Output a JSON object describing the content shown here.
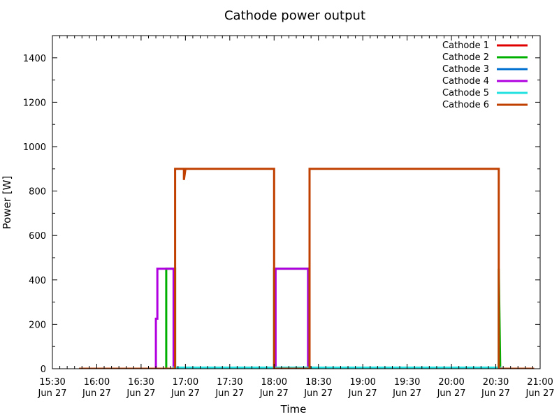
{
  "chart_data": {
    "type": "line",
    "title": "Cathode power output",
    "xlabel": "Time",
    "ylabel": "Power [W]",
    "xlim": [
      930,
      1260
    ],
    "ylim": [
      0,
      1500
    ],
    "grid": false,
    "legend_position": "top-right",
    "x_ticks": [
      {
        "v": 930,
        "t1": "15:30",
        "t2": "Jun 27"
      },
      {
        "v": 960,
        "t1": "16:00",
        "t2": "Jun 27"
      },
      {
        "v": 990,
        "t1": "16:30",
        "t2": "Jun 27"
      },
      {
        "v": 1020,
        "t1": "17:00",
        "t2": "Jun 27"
      },
      {
        "v": 1050,
        "t1": "17:30",
        "t2": "Jun 27"
      },
      {
        "v": 1080,
        "t1": "18:00",
        "t2": "Jun 27"
      },
      {
        "v": 1110,
        "t1": "18:30",
        "t2": "Jun 27"
      },
      {
        "v": 1140,
        "t1": "19:00",
        "t2": "Jun 27"
      },
      {
        "v": 1170,
        "t1": "19:30",
        "t2": "Jun 27"
      },
      {
        "v": 1200,
        "t1": "20:00",
        "t2": "Jun 27"
      },
      {
        "v": 1230,
        "t1": "20:30",
        "t2": "Jun 27"
      },
      {
        "v": 1260,
        "t1": "21:00",
        "t2": "Jun 27"
      }
    ],
    "y_ticks": [
      0,
      200,
      400,
      600,
      800,
      1000,
      1200,
      1400
    ],
    "series": [
      {
        "name": "Cathode 1",
        "color": "#e00000",
        "points": [
          [
            948,
            0
          ],
          [
            1006,
            0
          ],
          [
            1006,
            0
          ],
          [
            1012,
            0
          ],
          [
            1012,
            0
          ],
          [
            1080,
            0
          ],
          [
            1080,
            0
          ],
          [
            1104,
            0
          ],
          [
            1104,
            0
          ],
          [
            1232,
            0
          ],
          [
            1232,
            0
          ],
          [
            1256,
            0
          ]
        ]
      },
      {
        "name": "Cathode 2",
        "color": "#00b000",
        "points": [
          [
            948,
            0
          ],
          [
            1007,
            0
          ],
          [
            1007,
            450
          ],
          [
            1012,
            450
          ],
          [
            1013,
            450
          ],
          [
            1013,
            0
          ],
          [
            1080,
            0
          ],
          [
            1080,
            450
          ],
          [
            1103,
            450
          ],
          [
            1103,
            0
          ],
          [
            1232,
            0
          ],
          [
            1232,
            450
          ],
          [
            1233,
            0
          ],
          [
            1256,
            0
          ]
        ]
      },
      {
        "name": "Cathode 3",
        "color": "#0070d0",
        "points": [
          [
            948,
            0
          ],
          [
            1256,
            0
          ]
        ]
      },
      {
        "name": "Cathode 4",
        "color": "#b000e0",
        "points": [
          [
            948,
            0
          ],
          [
            1000,
            0
          ],
          [
            1000,
            225
          ],
          [
            1001,
            225
          ],
          [
            1001,
            450
          ],
          [
            1012,
            450
          ],
          [
            1012,
            0
          ],
          [
            1080,
            0
          ],
          [
            1081,
            0
          ],
          [
            1081,
            450
          ],
          [
            1103,
            450
          ],
          [
            1103,
            0
          ],
          [
            1256,
            0
          ]
        ]
      },
      {
        "name": "Cathode 5",
        "color": "#20e0e0",
        "points": [
          [
            948,
            0
          ],
          [
            1012,
            0
          ],
          [
            1012,
            5
          ],
          [
            1233,
            5
          ],
          [
            1233,
            0
          ],
          [
            1256,
            0
          ]
        ]
      },
      {
        "name": "Cathode 6",
        "color": "#c04000",
        "points": [
          [
            948,
            0
          ],
          [
            1013,
            0
          ],
          [
            1013,
            900
          ],
          [
            1019,
            900
          ],
          [
            1019,
            850
          ],
          [
            1020,
            900
          ],
          [
            1080,
            900
          ],
          [
            1080,
            0
          ],
          [
            1104,
            0
          ],
          [
            1104,
            900
          ],
          [
            1232,
            900
          ],
          [
            1232,
            0
          ],
          [
            1256,
            0
          ]
        ]
      }
    ]
  }
}
